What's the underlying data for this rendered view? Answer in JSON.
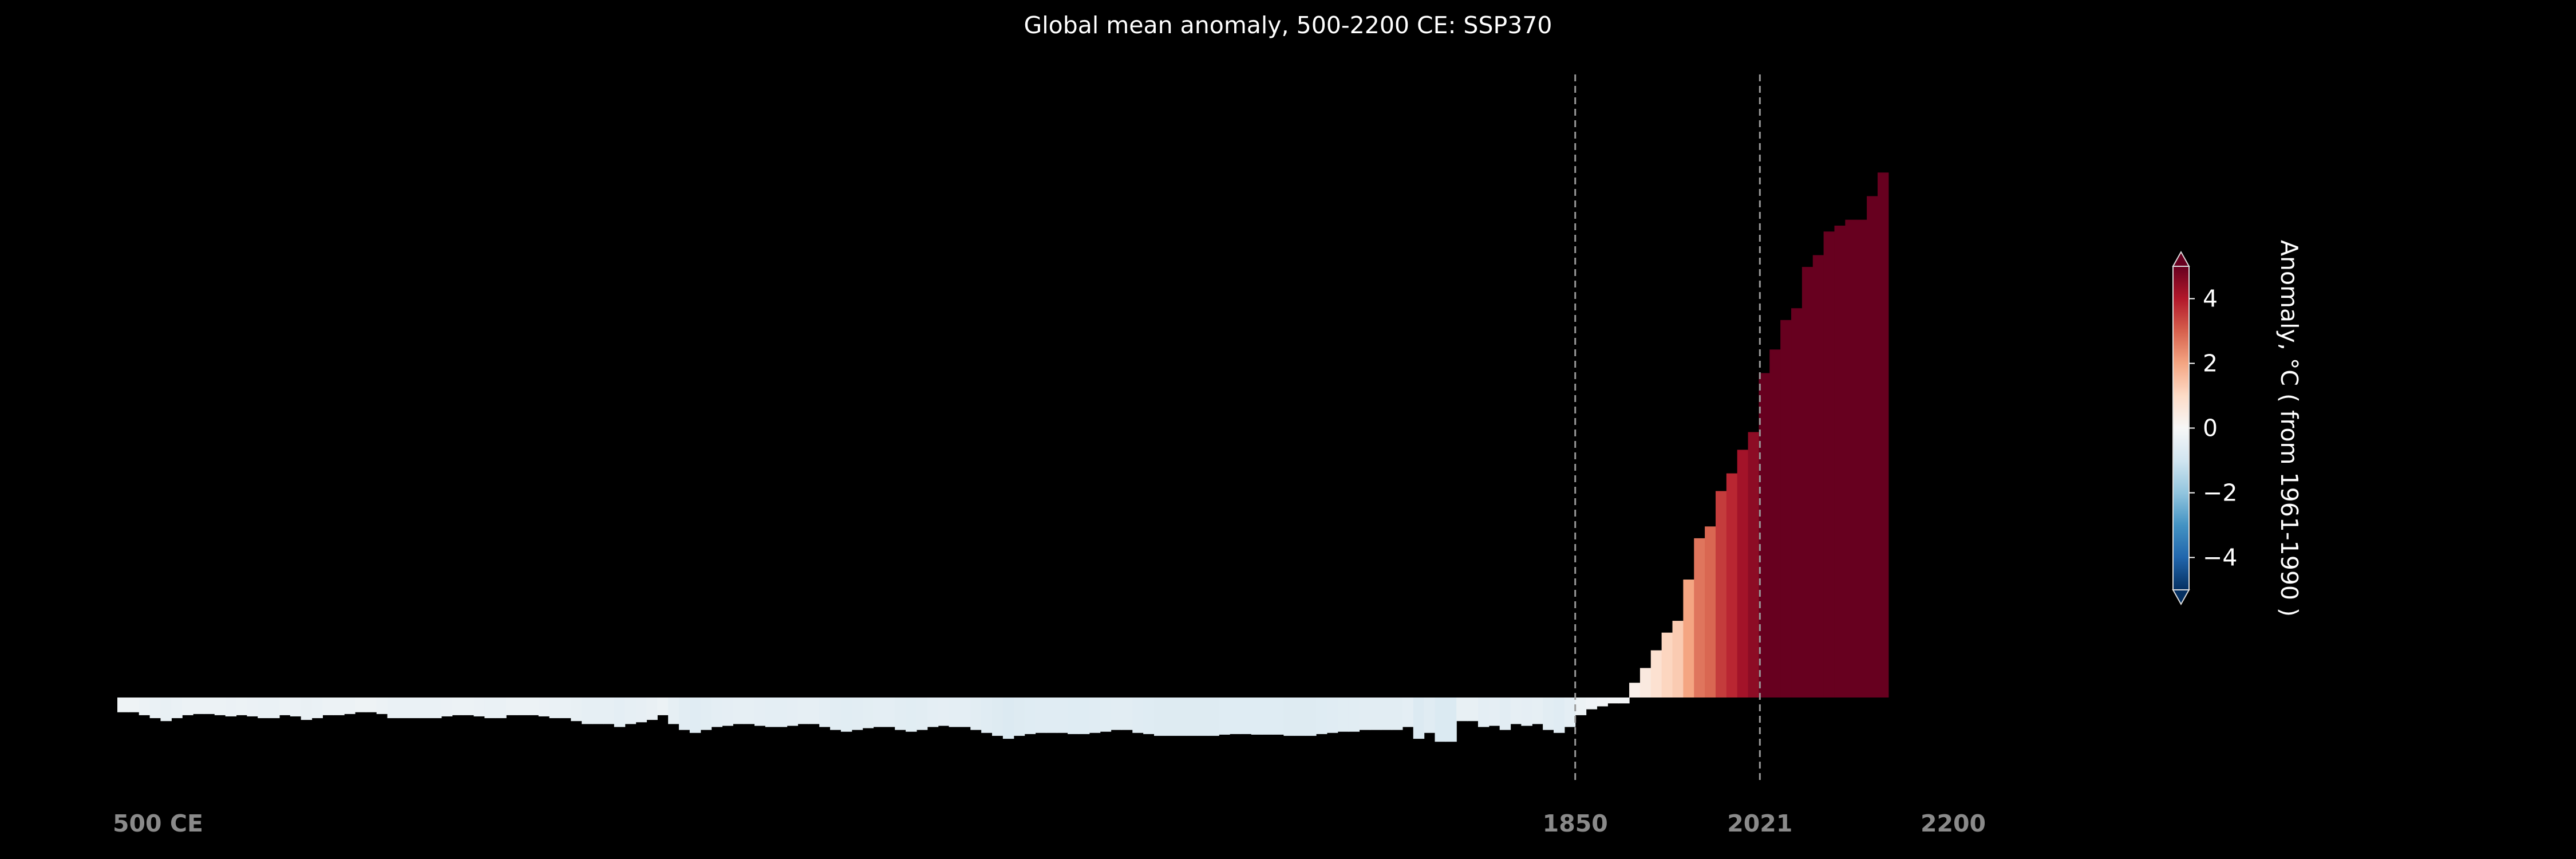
{
  "chart_data": {
    "type": "bar",
    "title": "Global mean anomaly, 500-2200 CE: SSP370",
    "xlabel": "",
    "ylabel": "",
    "xlim": [
      500,
      2200
    ],
    "ylim": [
      -1.4,
      9.8
    ],
    "bin_width_years": 10,
    "x_ticks": [
      {
        "value": 500,
        "label": "500 CE"
      },
      {
        "value": 1850,
        "label": "1850"
      },
      {
        "value": 2021,
        "label": "2021"
      },
      {
        "value": 2200,
        "label": "2200"
      }
    ],
    "reference_lines": [
      1850,
      2021
    ],
    "colorbar": {
      "label": "Anomaly, °C ( from 1961-1990 )",
      "range": [
        -5,
        5
      ],
      "ticks": [
        -4,
        -2,
        0,
        2,
        4
      ],
      "tick_labels": [
        "−4",
        "−2",
        "0",
        "2",
        "4"
      ],
      "extend": "both",
      "colormap": "RdBu_r"
    },
    "series": [
      {
        "x_start": 500,
        "values": [
          -0.25,
          -0.25,
          -0.3,
          -0.35,
          -0.4,
          -0.35,
          -0.3,
          -0.28,
          -0.28,
          -0.3,
          -0.32,
          -0.3,
          -0.32,
          -0.35,
          -0.35,
          -0.3,
          -0.32,
          -0.38,
          -0.35,
          -0.3,
          -0.3,
          -0.28,
          -0.25,
          -0.25,
          -0.28,
          -0.35,
          -0.35,
          -0.35,
          -0.35,
          -0.35,
          -0.32,
          -0.3,
          -0.3,
          -0.32,
          -0.35,
          -0.35,
          -0.3,
          -0.3,
          -0.3,
          -0.32,
          -0.35,
          -0.35,
          -0.4,
          -0.45,
          -0.45,
          -0.45,
          -0.5,
          -0.45,
          -0.42,
          -0.38,
          -0.3,
          -0.45,
          -0.55,
          -0.6,
          -0.55,
          -0.5,
          -0.48,
          -0.45,
          -0.45,
          -0.48,
          -0.5,
          -0.5,
          -0.48,
          -0.45,
          -0.45,
          -0.5,
          -0.55,
          -0.58,
          -0.55,
          -0.52,
          -0.5,
          -0.5,
          -0.55,
          -0.58,
          -0.55,
          -0.5,
          -0.48,
          -0.5,
          -0.5,
          -0.55,
          -0.6,
          -0.65,
          -0.7,
          -0.65,
          -0.62,
          -0.6,
          -0.6,
          -0.6,
          -0.62,
          -0.62,
          -0.6,
          -0.58,
          -0.55,
          -0.55,
          -0.6,
          -0.62,
          -0.65,
          -0.65,
          -0.65,
          -0.65,
          -0.65,
          -0.65,
          -0.63,
          -0.62,
          -0.62,
          -0.63,
          -0.63,
          -0.63,
          -0.65,
          -0.65,
          -0.65,
          -0.62,
          -0.6,
          -0.58,
          -0.58,
          -0.55,
          -0.55,
          -0.55,
          -0.55,
          -0.5,
          -0.7,
          -0.6,
          -0.75,
          -0.75,
          -0.4,
          -0.4,
          -0.5,
          -0.48,
          -0.55,
          -0.45,
          -0.48,
          -0.45,
          -0.55,
          -0.6,
          -0.5,
          -0.3,
          -0.2,
          -0.15,
          -0.1,
          -0.1,
          0.25,
          0.5,
          0.8,
          1.1,
          1.3,
          2.0,
          2.7,
          2.9,
          3.5,
          3.8,
          4.2,
          4.5,
          5.5,
          5.9,
          6.4,
          6.6,
          7.3,
          7.5,
          7.9,
          8.0,
          8.1,
          8.1,
          8.5,
          8.9
        ]
      }
    ]
  }
}
